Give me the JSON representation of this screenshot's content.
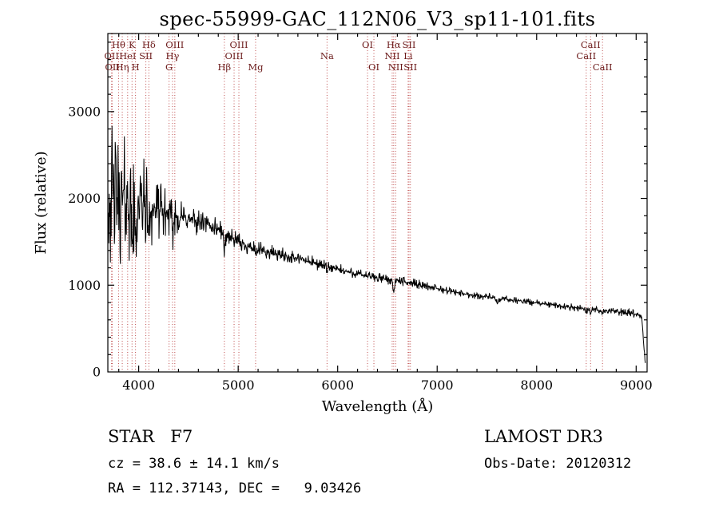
{
  "chart_data": {
    "type": "line",
    "title": "spec-55999-GAC_112N06_V3_sp11-101.fits",
    "xlabel": "Wavelength (Å)",
    "ylabel": "Flux (relative)",
    "xlim": [
      3690,
      9110
    ],
    "ylim": [
      0,
      3900
    ],
    "x_ticks": [
      4000,
      5000,
      6000,
      7000,
      8000,
      9000
    ],
    "y_ticks": [
      0,
      1000,
      2000,
      3000
    ],
    "x_minor_step": 200,
    "y_minor_step": 200,
    "grid": false,
    "legend": "none",
    "spectrum_color": "#000000",
    "marker_line_color": "#c05050",
    "marker_label_color": "#6b1a1a",
    "spectrum": {
      "sample_step": 4,
      "seed": 42,
      "continuum": [
        [
          3696,
          2020
        ],
        [
          3750,
          2000
        ],
        [
          3800,
          1985
        ],
        [
          3850,
          1970
        ],
        [
          3900,
          1955
        ],
        [
          3950,
          1950
        ],
        [
          4000,
          1945
        ],
        [
          4050,
          1925
        ],
        [
          4100,
          1905
        ],
        [
          4150,
          1885
        ],
        [
          4200,
          1860
        ],
        [
          4250,
          1840
        ],
        [
          4300,
          1820
        ],
        [
          4350,
          1805
        ],
        [
          4400,
          1790
        ],
        [
          4450,
          1775
        ],
        [
          4500,
          1760
        ],
        [
          4550,
          1742
        ],
        [
          4600,
          1725
        ],
        [
          4650,
          1708
        ],
        [
          4700,
          1690
        ],
        [
          4750,
          1670
        ],
        [
          4800,
          1650
        ],
        [
          4850,
          1610
        ],
        [
          4900,
          1570
        ],
        [
          4950,
          1530
        ],
        [
          5000,
          1490
        ],
        [
          5100,
          1450
        ],
        [
          5200,
          1410
        ],
        [
          5300,
          1380
        ],
        [
          5400,
          1355
        ],
        [
          5500,
          1330
        ],
        [
          5600,
          1305
        ],
        [
          5700,
          1275
        ],
        [
          5800,
          1245
        ],
        [
          5900,
          1215
        ],
        [
          6000,
          1180
        ],
        [
          6100,
          1155
        ],
        [
          6200,
          1130
        ],
        [
          6300,
          1105
        ],
        [
          6400,
          1085
        ],
        [
          6500,
          1068
        ],
        [
          6600,
          1048
        ],
        [
          6700,
          1032
        ],
        [
          6800,
          1015
        ],
        [
          6900,
          988
        ],
        [
          7000,
          960
        ],
        [
          7100,
          938
        ],
        [
          7200,
          915
        ],
        [
          7300,
          895
        ],
        [
          7400,
          878
        ],
        [
          7500,
          868
        ],
        [
          7600,
          852
        ],
        [
          7700,
          838
        ],
        [
          7800,
          822
        ],
        [
          7900,
          808
        ],
        [
          8000,
          795
        ],
        [
          8100,
          780
        ],
        [
          8200,
          765
        ],
        [
          8300,
          752
        ],
        [
          8400,
          740
        ],
        [
          8500,
          730
        ],
        [
          8600,
          718
        ],
        [
          8700,
          707
        ],
        [
          8800,
          696
        ],
        [
          8900,
          680
        ],
        [
          9000,
          665
        ],
        [
          9040,
          652
        ],
        [
          9060,
          560
        ],
        [
          9080,
          260
        ],
        [
          9094,
          45
        ]
      ],
      "noise_envelope": [
        [
          3696,
          430
        ],
        [
          3800,
          420
        ],
        [
          3900,
          370
        ],
        [
          4000,
          320
        ],
        [
          4100,
          250
        ],
        [
          4200,
          185
        ],
        [
          4300,
          150
        ],
        [
          4400,
          110
        ],
        [
          4500,
          88
        ],
        [
          4700,
          70
        ],
        [
          5000,
          56
        ],
        [
          5500,
          44
        ],
        [
          6000,
          36
        ],
        [
          6500,
          30
        ],
        [
          7000,
          25
        ],
        [
          7500,
          21
        ],
        [
          8000,
          20
        ],
        [
          8500,
          22
        ],
        [
          9000,
          26
        ],
        [
          9094,
          30
        ]
      ],
      "absorption_lines": [
        {
          "center": 3933,
          "depth": 420,
          "width": 14
        },
        {
          "center": 3968,
          "depth": 380,
          "width": 14
        },
        {
          "center": 4102,
          "depth": 300,
          "width": 14
        },
        {
          "center": 4340,
          "depth": 220,
          "width": 13
        },
        {
          "center": 4861,
          "depth": 180,
          "width": 12
        },
        {
          "center": 5175,
          "depth": 70,
          "width": 18
        },
        {
          "center": 5893,
          "depth": 85,
          "width": 10
        },
        {
          "center": 6563,
          "depth": 130,
          "width": 10
        },
        {
          "center": 7605,
          "depth": 60,
          "width": 22
        },
        {
          "center": 8498,
          "depth": 45,
          "width": 10
        },
        {
          "center": 8542,
          "depth": 55,
          "width": 12
        },
        {
          "center": 8662,
          "depth": 45,
          "width": 12
        }
      ]
    },
    "spectral_markers": [
      {
        "wavelength": 3727,
        "label": "OII",
        "row": 2
      },
      {
        "wavelength": 3735,
        "label": "OII",
        "row": 3
      },
      {
        "wavelength": 3798,
        "label": "Hθ",
        "row": 1
      },
      {
        "wavelength": 3835,
        "label": "Hη",
        "row": 3
      },
      {
        "wavelength": 3889,
        "label": "HeI",
        "row": 2
      },
      {
        "wavelength": 3933,
        "label": "K",
        "row": 1
      },
      {
        "wavelength": 3968,
        "label": "H",
        "row": 3
      },
      {
        "wavelength": 4072,
        "label": "SII",
        "row": 2
      },
      {
        "wavelength": 4102,
        "label": "Hδ",
        "row": 1
      },
      {
        "wavelength": 4305,
        "label": "G",
        "row": 3
      },
      {
        "wavelength": 4340,
        "label": "Hγ",
        "row": 2
      },
      {
        "wavelength": 4363,
        "label": "OIII",
        "row": 1
      },
      {
        "wavelength": 4861,
        "label": "Hβ",
        "row": 3
      },
      {
        "wavelength": 4959,
        "label": "OIII",
        "row": 2
      },
      {
        "wavelength": 5007,
        "label": "OIII",
        "row": 1
      },
      {
        "wavelength": 5175,
        "label": "Mg",
        "row": 3
      },
      {
        "wavelength": 5893,
        "label": "Na",
        "row": 2
      },
      {
        "wavelength": 6300,
        "label": "OI",
        "row": 1
      },
      {
        "wavelength": 6364,
        "label": "OI",
        "row": 3
      },
      {
        "wavelength": 6548,
        "label": "NII",
        "row": 2
      },
      {
        "wavelength": 6563,
        "label": "Hα",
        "row": 1
      },
      {
        "wavelength": 6583,
        "label": "NII",
        "row": 3
      },
      {
        "wavelength": 6708,
        "label": "Li",
        "row": 2
      },
      {
        "wavelength": 6717,
        "label": "SII",
        "row": 1
      },
      {
        "wavelength": 6731,
        "label": "SII",
        "row": 3
      },
      {
        "wavelength": 8498,
        "label": "CaII",
        "row": 2
      },
      {
        "wavelength": 8542,
        "label": "CaII",
        "row": 1
      },
      {
        "wavelength": 8662,
        "label": "CaII",
        "row": 3
      }
    ]
  },
  "footer": {
    "class_label": "STAR   F7",
    "survey": "LAMOST DR3",
    "cz": "cz = 38.6 ± 14.1 km/s",
    "obs_date": "Obs-Date: 20120312",
    "radec": "RA = 112.37143, DEC =   9.03426"
  }
}
